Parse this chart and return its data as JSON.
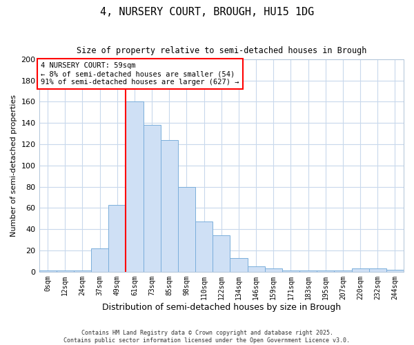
{
  "title": "4, NURSERY COURT, BROUGH, HU15 1DG",
  "subtitle": "Size of property relative to semi-detached houses in Brough",
  "xlabel": "Distribution of semi-detached houses by size in Brough",
  "ylabel": "Number of semi-detached properties",
  "bin_labels": [
    "0sqm",
    "12sqm",
    "24sqm",
    "37sqm",
    "49sqm",
    "61sqm",
    "73sqm",
    "85sqm",
    "98sqm",
    "110sqm",
    "122sqm",
    "134sqm",
    "146sqm",
    "159sqm",
    "171sqm",
    "183sqm",
    "195sqm",
    "207sqm",
    "220sqm",
    "232sqm",
    "244sqm"
  ],
  "bar_heights": [
    1,
    1,
    1,
    22,
    63,
    160,
    138,
    124,
    80,
    47,
    34,
    13,
    5,
    3,
    1,
    1,
    1,
    1,
    3,
    3,
    2
  ],
  "bar_color": "#cfe0f5",
  "bar_edge_color": "#7aaedb",
  "vline_x": 5,
  "vline_color": "red",
  "annotation_title": "4 NURSERY COURT: 59sqm",
  "annotation_line1": "← 8% of semi-detached houses are smaller (54)",
  "annotation_line2": "91% of semi-detached houses are larger (627) →",
  "annotation_box_facecolor": "white",
  "annotation_box_edgecolor": "red",
  "ylim": [
    0,
    200
  ],
  "yticks": [
    0,
    20,
    40,
    60,
    80,
    100,
    120,
    140,
    160,
    180,
    200
  ],
  "footer1": "Contains HM Land Registry data © Crown copyright and database right 2025.",
  "footer2": "Contains public sector information licensed under the Open Government Licence v3.0.",
  "bg_color": "#ffffff",
  "grid_color": "#c8d8ec",
  "spine_color": "#b0c4d8"
}
